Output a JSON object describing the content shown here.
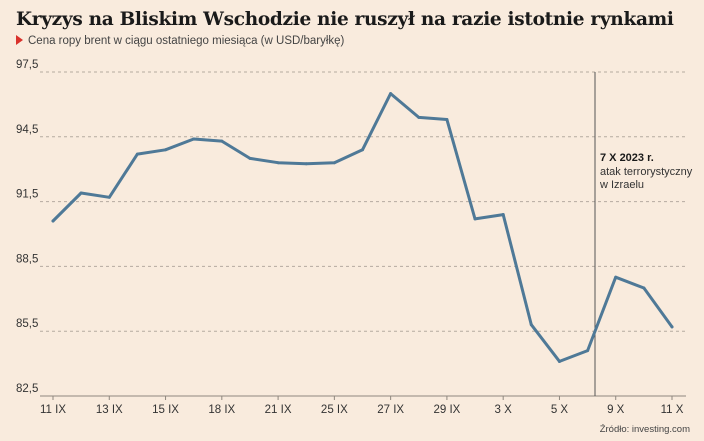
{
  "title": "Kryzys na Bliskim Wschodzie nie ruszył na razie istotnie rynkami",
  "subtitle": "Cena ropy brent w ciągu ostatniego miesiąca (w USD/baryłkę)",
  "source": "Źródło: investing.com",
  "colors": {
    "background": "#f9ebdd",
    "line": "#4f7997",
    "marker": "#d9312b",
    "grid": "#b5aba0"
  },
  "chart_data": {
    "type": "line",
    "title": "Kryzys na Bliskim Wschodzie nie ruszył na razie istotnie rynkami",
    "subtitle": "Cena ropy brent w ciągu ostatniego miesiąca (w USD/baryłkę)",
    "ylim": [
      82.5,
      97.5
    ],
    "yticks": [
      "82,5",
      "85,5",
      "88,5",
      "91,5",
      "94,5",
      "97,5"
    ],
    "grid": "horizontal dashed",
    "x_tick_labels": [
      "11 IX",
      "13 IX",
      "15 IX",
      "18 IX",
      "21 IX",
      "25 IX",
      "27 IX",
      "29 IX",
      "3 X",
      "5 X",
      "9 X",
      "11 X"
    ],
    "series": [
      {
        "values": [
          90.6,
          91.9,
          91.7,
          93.7,
          93.9,
          94.4,
          94.3,
          93.5,
          93.3,
          93.25,
          93.3,
          93.9,
          96.5,
          95.4,
          95.3,
          90.7,
          90.9,
          85.8,
          84.1,
          84.6,
          88.0,
          87.5,
          85.7
        ]
      }
    ],
    "annotation": {
      "date_label": "7 X 2023 r.",
      "text_lines": [
        "atak terrorystyczny",
        "w Izraelu"
      ]
    }
  }
}
